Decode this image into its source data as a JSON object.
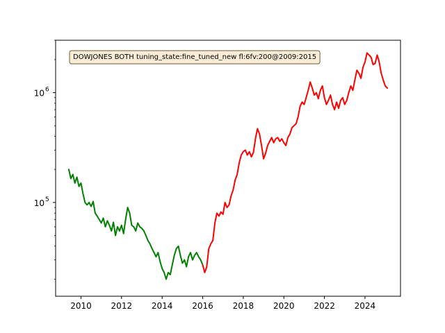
{
  "chart_data": {
    "type": "line",
    "title": "",
    "xlabel": "",
    "ylabel": "",
    "yscale": "log",
    "xlim": [
      2008.75,
      2025.75
    ],
    "ylim": [
      14000,
      3000000
    ],
    "grid": false,
    "x_ticks": [
      2010,
      2012,
      2014,
      2016,
      2018,
      2020,
      2022,
      2024
    ],
    "x_tick_labels": [
      "2010",
      "2012",
      "2014",
      "2016",
      "2018",
      "2020",
      "2022",
      "2024"
    ],
    "y_ticks": [
      100000,
      1000000
    ],
    "y_tick_labels": [
      {
        "base": "10",
        "exp": "5"
      },
      {
        "base": "10",
        "exp": "6"
      }
    ],
    "annotation": {
      "text": "DOWJONES BOTH tuning_state:fine_tuned_new fl:6fv:200@2009:2015",
      "background": "#f8ecd6",
      "border": "#6b5a3a"
    },
    "series": [
      {
        "color": "#008000",
        "points": [
          [
            2009.4,
            200000
          ],
          [
            2009.5,
            165000
          ],
          [
            2009.6,
            180000
          ],
          [
            2009.7,
            150000
          ],
          [
            2009.8,
            170000
          ],
          [
            2009.9,
            140000
          ],
          [
            2010.0,
            150000
          ],
          [
            2010.1,
            120000
          ],
          [
            2010.2,
            100000
          ],
          [
            2010.3,
            95000
          ],
          [
            2010.4,
            100000
          ],
          [
            2010.5,
            92000
          ],
          [
            2010.6,
            102000
          ],
          [
            2010.7,
            80000
          ],
          [
            2010.8,
            75000
          ],
          [
            2010.9,
            70000
          ],
          [
            2011.0,
            65000
          ],
          [
            2011.1,
            72000
          ],
          [
            2011.2,
            60000
          ],
          [
            2011.3,
            68000
          ],
          [
            2011.4,
            62000
          ],
          [
            2011.5,
            55000
          ],
          [
            2011.6,
            66000
          ],
          [
            2011.7,
            50000
          ],
          [
            2011.8,
            60000
          ],
          [
            2011.9,
            55000
          ],
          [
            2012.0,
            62000
          ],
          [
            2012.1,
            52000
          ],
          [
            2012.2,
            70000
          ],
          [
            2012.3,
            90000
          ],
          [
            2012.4,
            80000
          ],
          [
            2012.5,
            62000
          ],
          [
            2012.6,
            60000
          ],
          [
            2012.7,
            55000
          ],
          [
            2012.8,
            65000
          ],
          [
            2012.9,
            60000
          ],
          [
            2013.0,
            58000
          ],
          [
            2013.1,
            55000
          ],
          [
            2013.2,
            50000
          ],
          [
            2013.3,
            45000
          ],
          [
            2013.4,
            42000
          ],
          [
            2013.5,
            38000
          ],
          [
            2013.6,
            35000
          ],
          [
            2013.7,
            32000
          ],
          [
            2013.8,
            35000
          ],
          [
            2013.9,
            29000
          ],
          [
            2014.0,
            25000
          ],
          [
            2014.1,
            23000
          ],
          [
            2014.2,
            20000
          ],
          [
            2014.3,
            23000
          ],
          [
            2014.4,
            22000
          ],
          [
            2014.5,
            27000
          ],
          [
            2014.6,
            33000
          ],
          [
            2014.7,
            38000
          ],
          [
            2014.8,
            40000
          ],
          [
            2014.9,
            33000
          ],
          [
            2015.0,
            28000
          ],
          [
            2015.1,
            30000
          ],
          [
            2015.2,
            26000
          ],
          [
            2015.3,
            32000
          ],
          [
            2015.4,
            35000
          ],
          [
            2015.5,
            30000
          ],
          [
            2015.6,
            33000
          ],
          [
            2015.7,
            35000
          ],
          [
            2015.8,
            32000
          ],
          [
            2015.9,
            30000
          ],
          [
            2016.0,
            27000
          ]
        ]
      },
      {
        "color": "#ff0000",
        "points": [
          [
            2016.0,
            27000
          ],
          [
            2016.1,
            23000
          ],
          [
            2016.2,
            26000
          ],
          [
            2016.3,
            38000
          ],
          [
            2016.4,
            42000
          ],
          [
            2016.5,
            45000
          ],
          [
            2016.6,
            65000
          ],
          [
            2016.7,
            80000
          ],
          [
            2016.8,
            75000
          ],
          [
            2016.9,
            82000
          ],
          [
            2017.0,
            78000
          ],
          [
            2017.1,
            100000
          ],
          [
            2017.2,
            90000
          ],
          [
            2017.3,
            95000
          ],
          [
            2017.4,
            115000
          ],
          [
            2017.5,
            130000
          ],
          [
            2017.6,
            160000
          ],
          [
            2017.7,
            180000
          ],
          [
            2017.8,
            230000
          ],
          [
            2017.9,
            270000
          ],
          [
            2018.0,
            290000
          ],
          [
            2018.1,
            300000
          ],
          [
            2018.2,
            270000
          ],
          [
            2018.3,
            290000
          ],
          [
            2018.4,
            260000
          ],
          [
            2018.5,
            285000
          ],
          [
            2018.6,
            380000
          ],
          [
            2018.7,
            470000
          ],
          [
            2018.8,
            420000
          ],
          [
            2018.9,
            330000
          ],
          [
            2019.0,
            250000
          ],
          [
            2019.1,
            280000
          ],
          [
            2019.2,
            330000
          ],
          [
            2019.3,
            360000
          ],
          [
            2019.4,
            390000
          ],
          [
            2019.5,
            350000
          ],
          [
            2019.6,
            380000
          ],
          [
            2019.7,
            390000
          ],
          [
            2019.8,
            360000
          ],
          [
            2019.9,
            380000
          ],
          [
            2020.0,
            350000
          ],
          [
            2020.1,
            330000
          ],
          [
            2020.2,
            390000
          ],
          [
            2020.3,
            420000
          ],
          [
            2020.4,
            480000
          ],
          [
            2020.5,
            500000
          ],
          [
            2020.6,
            520000
          ],
          [
            2020.7,
            600000
          ],
          [
            2020.8,
            750000
          ],
          [
            2020.9,
            820000
          ],
          [
            2021.0,
            780000
          ],
          [
            2021.1,
            900000
          ],
          [
            2021.2,
            1050000
          ],
          [
            2021.3,
            1250000
          ],
          [
            2021.4,
            1100000
          ],
          [
            2021.5,
            950000
          ],
          [
            2021.6,
            1000000
          ],
          [
            2021.7,
            880000
          ],
          [
            2021.8,
            1050000
          ],
          [
            2021.9,
            1150000
          ],
          [
            2022.0,
            900000
          ],
          [
            2022.1,
            780000
          ],
          [
            2022.2,
            850000
          ],
          [
            2022.3,
            950000
          ],
          [
            2022.4,
            780000
          ],
          [
            2022.5,
            700000
          ],
          [
            2022.6,
            820000
          ],
          [
            2022.7,
            720000
          ],
          [
            2022.8,
            850000
          ],
          [
            2022.9,
            900000
          ],
          [
            2023.0,
            780000
          ],
          [
            2023.1,
            850000
          ],
          [
            2023.2,
            1000000
          ],
          [
            2023.3,
            1150000
          ],
          [
            2023.4,
            1050000
          ],
          [
            2023.5,
            1300000
          ],
          [
            2023.6,
            1600000
          ],
          [
            2023.7,
            1500000
          ],
          [
            2023.8,
            1350000
          ],
          [
            2023.9,
            1700000
          ],
          [
            2024.0,
            1900000
          ],
          [
            2024.1,
            2300000
          ],
          [
            2024.2,
            2200000
          ],
          [
            2024.3,
            2100000
          ],
          [
            2024.4,
            1800000
          ],
          [
            2024.5,
            1850000
          ],
          [
            2024.6,
            2200000
          ],
          [
            2024.7,
            1900000
          ],
          [
            2024.8,
            1500000
          ],
          [
            2024.9,
            1300000
          ],
          [
            2025.0,
            1150000
          ],
          [
            2025.1,
            1100000
          ]
        ]
      }
    ]
  }
}
